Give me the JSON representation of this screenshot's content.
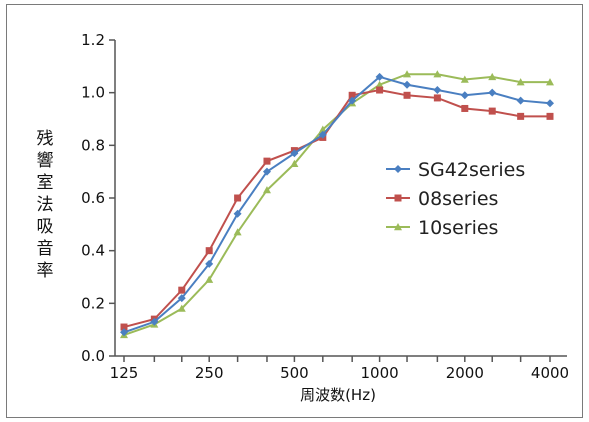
{
  "chart_data": {
    "type": "line",
    "xlabel": "周波数(Hz)",
    "ylabel": "残響室法吸音率",
    "x_scale": "log",
    "x": [
      125,
      160,
      200,
      250,
      315,
      400,
      500,
      630,
      800,
      1000,
      1250,
      1600,
      2000,
      2500,
      3150,
      4000
    ],
    "x_ticks": [
      125,
      250,
      500,
      1000,
      2000,
      4000
    ],
    "x_tick_labels": [
      "125",
      "250",
      "500",
      "1000",
      "2000",
      "4000"
    ],
    "y_ticks": [
      0.0,
      0.2,
      0.4,
      0.6,
      0.8,
      1.0,
      1.2
    ],
    "y_tick_labels": [
      "0.0",
      "0.2",
      "0.4",
      "0.6",
      "0.8",
      "1.0",
      "1.2"
    ],
    "ylim": [
      0,
      1.2
    ],
    "grid": false,
    "legend": "center-right",
    "series": [
      {
        "name": "SG42series",
        "color": "#4a7fc1",
        "marker": "diamond",
        "values": [
          0.09,
          0.13,
          0.22,
          0.35,
          0.54,
          0.7,
          0.77,
          0.84,
          0.97,
          1.06,
          1.03,
          1.01,
          0.99,
          1.0,
          0.97,
          0.96
        ]
      },
      {
        "name": "08series",
        "color": "#c0504d",
        "marker": "square",
        "values": [
          0.11,
          0.14,
          0.25,
          0.4,
          0.6,
          0.74,
          0.78,
          0.83,
          0.99,
          1.01,
          0.99,
          0.98,
          0.94,
          0.93,
          0.91,
          0.91
        ]
      },
      {
        "name": "10series",
        "color": "#9bbb59",
        "marker": "triangle",
        "values": [
          0.08,
          0.12,
          0.18,
          0.29,
          0.47,
          0.63,
          0.73,
          0.86,
          0.96,
          1.03,
          1.07,
          1.07,
          1.05,
          1.06,
          1.04,
          1.04
        ]
      }
    ]
  }
}
